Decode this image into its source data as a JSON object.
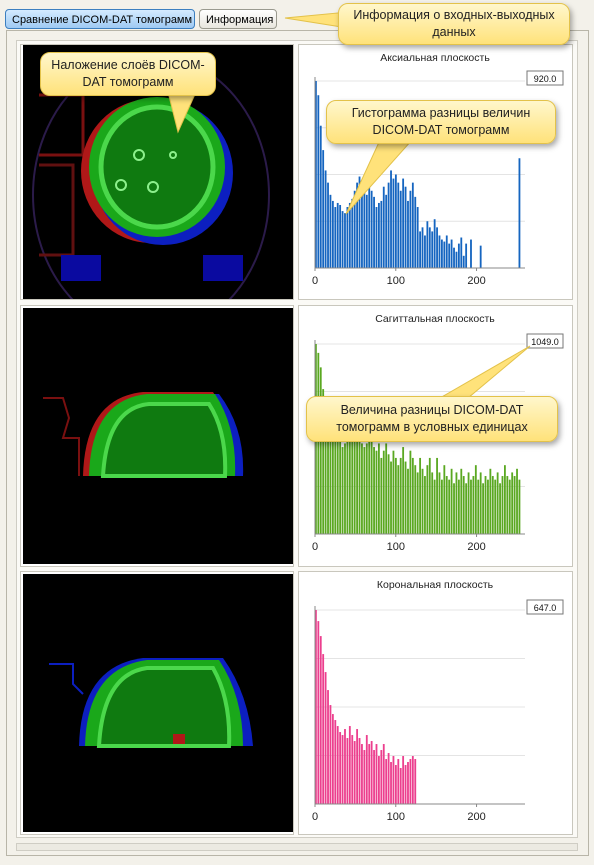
{
  "tabs": {
    "compare_label": "Сравнение DICOM-DAT томограмм",
    "info_label": "Информация"
  },
  "callouts": {
    "info": "Информация о входных-выходных данных",
    "overlay": "Наложение слоёв DICOM-DAT томограмм",
    "histogram": "Гистограмма разницы величин DICOM-DAT томограмм",
    "value": "Величина разницы DICOM-DAT томограмм в условных единицах"
  },
  "colors": {
    "axial": "#1565c0",
    "sagittal": "#5aa821",
    "coronal": "#ec3f8e",
    "callout_bg": "#ffe27a",
    "tab_active": "#9fcaf3"
  },
  "chart_data": [
    {
      "type": "bar",
      "title": "Аксиальная плоскость",
      "value_label": "920.0",
      "xlim": [
        0,
        260
      ],
      "x_ticks": [
        "0",
        "100",
        "200"
      ],
      "color": "#1565c0",
      "x": [
        0,
        3,
        6,
        9,
        12,
        15,
        18,
        21,
        24,
        27,
        30,
        33,
        36,
        39,
        42,
        45,
        48,
        51,
        54,
        57,
        60,
        63,
        66,
        69,
        72,
        75,
        78,
        81,
        84,
        87,
        90,
        93,
        96,
        99,
        102,
        105,
        108,
        111,
        114,
        117,
        120,
        123,
        126,
        129,
        132,
        135,
        138,
        141,
        144,
        147,
        150,
        153,
        156,
        159,
        162,
        165,
        168,
        171,
        174,
        177,
        180,
        183,
        186,
        189,
        192,
        195,
        198,
        201,
        204,
        207,
        210,
        213,
        216,
        219,
        222,
        225,
        228,
        231,
        234,
        237,
        240,
        243,
        246,
        249,
        252
      ],
      "values": [
        920,
        850,
        700,
        580,
        480,
        420,
        360,
        330,
        300,
        320,
        310,
        280,
        270,
        300,
        320,
        340,
        380,
        420,
        450,
        430,
        380,
        360,
        400,
        380,
        350,
        300,
        320,
        330,
        400,
        360,
        420,
        480,
        440,
        460,
        420,
        380,
        440,
        400,
        330,
        380,
        420,
        350,
        300,
        180,
        200,
        160,
        230,
        200,
        180,
        240,
        200,
        160,
        140,
        130,
        160,
        120,
        140,
        100,
        80,
        120,
        150,
        60,
        120,
        0,
        140,
        0,
        0,
        0,
        110,
        0,
        0,
        0,
        0,
        0,
        0,
        0,
        0,
        0,
        0,
        0,
        0,
        0,
        0,
        0,
        540
      ]
    },
    {
      "type": "bar",
      "title": "Сагиттальная плоскость",
      "value_label": "1049.0",
      "xlim": [
        0,
        260
      ],
      "x_ticks": [
        "0",
        "100",
        "200"
      ],
      "color": "#5aa821",
      "x": [
        0,
        3,
        6,
        9,
        12,
        15,
        18,
        21,
        24,
        27,
        30,
        33,
        36,
        39,
        42,
        45,
        48,
        51,
        54,
        57,
        60,
        63,
        66,
        69,
        72,
        75,
        78,
        81,
        84,
        87,
        90,
        93,
        96,
        99,
        102,
        105,
        108,
        111,
        114,
        117,
        120,
        123,
        126,
        129,
        132,
        135,
        138,
        141,
        144,
        147,
        150,
        153,
        156,
        159,
        162,
        165,
        168,
        171,
        174,
        177,
        180,
        183,
        186,
        189,
        192,
        195,
        198,
        201,
        204,
        207,
        210,
        213,
        216,
        219,
        222,
        225,
        228,
        231,
        234,
        237,
        240,
        243,
        246,
        249,
        252
      ],
      "values": [
        1049,
        1000,
        920,
        800,
        720,
        660,
        620,
        600,
        560,
        520,
        560,
        480,
        500,
        540,
        520,
        560,
        600,
        540,
        520,
        500,
        480,
        500,
        560,
        520,
        480,
        460,
        500,
        420,
        460,
        500,
        440,
        400,
        460,
        420,
        380,
        420,
        480,
        400,
        360,
        460,
        420,
        380,
        340,
        420,
        360,
        320,
        380,
        420,
        340,
        300,
        420,
        340,
        300,
        380,
        320,
        300,
        360,
        280,
        340,
        300,
        360,
        320,
        280,
        340,
        300,
        320,
        380,
        300,
        340,
        280,
        320,
        300,
        360,
        320,
        300,
        340,
        280,
        320,
        380,
        320,
        300,
        340,
        320,
        360,
        300
      ]
    },
    {
      "type": "bar",
      "title": "Корональная плоскость",
      "value_label": "647.0",
      "xlim": [
        0,
        260
      ],
      "x_ticks": [
        "0",
        "100",
        "200"
      ],
      "color": "#ec3f8e",
      "x": [
        0,
        3,
        6,
        9,
        12,
        15,
        18,
        21,
        24,
        27,
        30,
        33,
        36,
        39,
        42,
        45,
        48,
        51,
        54,
        57,
        60,
        63,
        66,
        69,
        72,
        75,
        78,
        81,
        84,
        87,
        90,
        93,
        96,
        99,
        102,
        105,
        108,
        111,
        114,
        117,
        120,
        123
      ],
      "values": [
        647,
        610,
        560,
        500,
        440,
        380,
        330,
        300,
        280,
        260,
        240,
        230,
        250,
        220,
        260,
        230,
        210,
        250,
        220,
        200,
        180,
        230,
        200,
        210,
        180,
        200,
        160,
        180,
        200,
        150,
        170,
        140,
        160,
        130,
        150,
        120,
        160,
        130,
        140,
        150,
        160,
        150
      ]
    }
  ]
}
